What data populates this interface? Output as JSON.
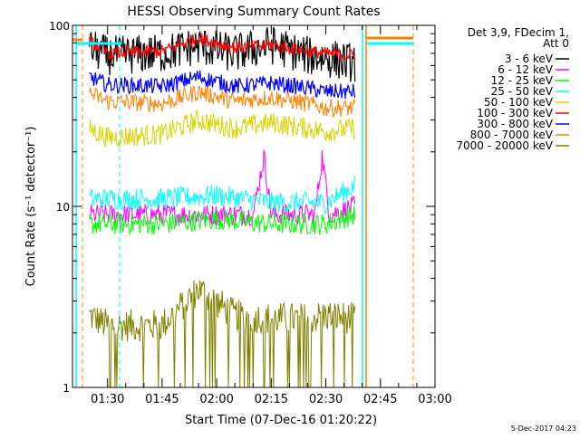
{
  "chart_data": {
    "type": "line",
    "title": "HESSI Observing Summary Count Rates",
    "xlabel": "Start Time (07-Dec-16 01:20:22)",
    "ylabel": "Count Rate (s⁻¹ detector⁻¹)",
    "y_scale": "log",
    "ylim": [
      1,
      100
    ],
    "xlim": [
      "01:20:22",
      "03:00:00"
    ],
    "x_tick_labels": [
      "01:30",
      "01:45",
      "02:00",
      "02:15",
      "02:30",
      "02:45",
      "03:00"
    ],
    "y_tick_labels": [
      "1",
      "10",
      "100"
    ],
    "legend_title": [
      "Det 3,9, FDecim 1,",
      "Att 0"
    ],
    "legend_position": "right",
    "annotation": "5-Dec-2017 04:23",
    "series": [
      {
        "name": "3 - 6 keV",
        "color": "#000000",
        "x": [
          "01:25",
          "01:30",
          "01:45",
          "01:55",
          "02:05",
          "02:15",
          "02:25",
          "02:30",
          "02:38"
        ],
        "values": [
          75,
          68,
          70,
          77,
          70,
          78,
          68,
          66,
          62
        ]
      },
      {
        "name": "6 - 12 keV",
        "color": "#ff00ff",
        "x": [
          "01:25",
          "01:30",
          "01:45",
          "02:00",
          "02:10",
          "02:13",
          "02:15",
          "02:20",
          "02:27",
          "02:29",
          "02:31",
          "02:38"
        ],
        "values": [
          9,
          9,
          9,
          9,
          9,
          19,
          9,
          9,
          9,
          19,
          9,
          10
        ]
      },
      {
        "name": "12 - 25 keV",
        "color": "#00ff00",
        "x": [
          "01:25",
          "01:30",
          "01:45",
          "02:00",
          "02:15",
          "02:30",
          "02:38"
        ],
        "values": [
          8,
          8,
          8,
          8.5,
          8,
          8,
          9
        ]
      },
      {
        "name": "25 - 50 keV",
        "color": "#00ffff",
        "x": [
          "01:25",
          "01:30",
          "01:45",
          "02:00",
          "02:15",
          "02:30",
          "02:38"
        ],
        "values": [
          11,
          11,
          11,
          11.5,
          10.5,
          10.5,
          13
        ]
      },
      {
        "name": "50 - 100 keV",
        "color": "#d4d400",
        "x": [
          "01:25",
          "01:30",
          "01:45",
          "01:55",
          "02:05",
          "02:15",
          "02:25",
          "02:30",
          "02:38"
        ],
        "values": [
          27,
          24,
          25,
          30,
          27,
          29,
          27,
          26,
          27
        ]
      },
      {
        "name": "100 - 300 keV",
        "color": "#ff0000",
        "x": [
          "01:25",
          "01:30",
          "01:45",
          "01:55",
          "02:05",
          "02:15",
          "02:25",
          "02:30",
          "02:38"
        ],
        "values": [
          82,
          70,
          72,
          85,
          75,
          78,
          72,
          70,
          68
        ]
      },
      {
        "name": "300 - 800 keV",
        "color": "#0000ff",
        "x": [
          "01:25",
          "01:30",
          "01:45",
          "01:55",
          "02:05",
          "02:15",
          "02:25",
          "02:30",
          "02:38"
        ],
        "values": [
          52,
          47,
          46,
          52,
          46,
          48,
          45,
          43,
          43
        ]
      },
      {
        "name": "800 - 7000 keV",
        "color": "#ff8000",
        "x": [
          "01:25",
          "01:30",
          "01:45",
          "01:55",
          "02:05",
          "02:15",
          "02:25",
          "02:30",
          "02:38"
        ],
        "values": [
          42,
          38,
          37,
          43,
          38,
          40,
          37,
          35,
          35
        ]
      },
      {
        "name": "7000 - 20000 keV",
        "color": "#808000",
        "x": [
          "01:25",
          "01:30",
          "01:45",
          "01:55",
          "02:05",
          "02:15",
          "02:25",
          "02:30",
          "02:38"
        ],
        "values": [
          2.5,
          2.2,
          2.2,
          3.5,
          2.5,
          2.4,
          2.4,
          2.5,
          2.4
        ]
      }
    ]
  }
}
